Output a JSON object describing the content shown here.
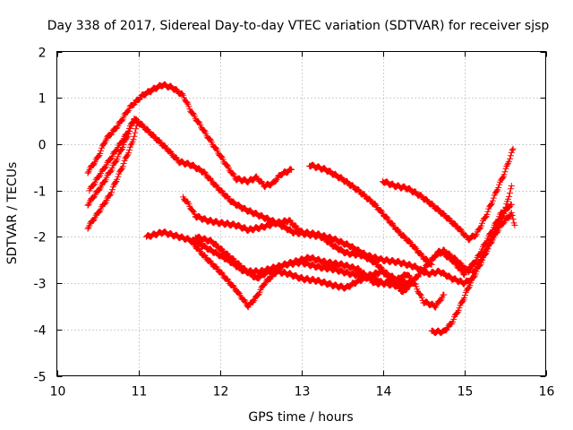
{
  "chart_data": {
    "type": "scatter",
    "title": "Day 338 of 2017, Sidereal Day-to-day VTEC variation (SDTVAR) for receiver sjsp",
    "xlabel": "GPS time / hours",
    "ylabel": "SDTVAR / TECUs",
    "xlim": [
      10,
      16
    ],
    "ylim": [
      -5,
      2
    ],
    "xticks": [
      10,
      11,
      12,
      13,
      14,
      15,
      16
    ],
    "yticks": [
      -5,
      -4,
      -3,
      -2,
      -1,
      0,
      1,
      2
    ],
    "grid": true,
    "marker": "+",
    "color": "#ff0000",
    "series": [
      {
        "name": "track-1",
        "points": [
          [
            10.38,
            -0.6
          ],
          [
            10.5,
            -0.3
          ],
          [
            10.6,
            0.1
          ],
          [
            10.75,
            0.4
          ],
          [
            10.9,
            0.8
          ],
          [
            11.05,
            1.05
          ],
          [
            11.2,
            1.2
          ],
          [
            11.3,
            1.28
          ],
          [
            11.42,
            1.22
          ],
          [
            11.55,
            1.05
          ],
          [
            11.65,
            0.7
          ],
          [
            11.8,
            0.3
          ],
          [
            11.95,
            -0.1
          ],
          [
            12.1,
            -0.5
          ],
          [
            12.2,
            -0.75
          ],
          [
            12.35,
            -0.8
          ],
          [
            12.45,
            -0.72
          ],
          [
            12.55,
            -0.9
          ],
          [
            12.65,
            -0.85
          ],
          [
            12.75,
            -0.65
          ],
          [
            12.88,
            -0.55
          ]
        ]
      },
      {
        "name": "track-2",
        "points": [
          [
            10.38,
            -1.3
          ],
          [
            10.55,
            -0.9
          ],
          [
            10.7,
            -0.45
          ],
          [
            10.85,
            0.1
          ],
          [
            10.95,
            0.55
          ],
          [
            11.05,
            0.4
          ],
          [
            11.2,
            0.15
          ],
          [
            11.35,
            -0.1
          ],
          [
            11.5,
            -0.38
          ],
          [
            11.65,
            -0.45
          ],
          [
            11.8,
            -0.6
          ],
          [
            11.95,
            -0.9
          ],
          [
            12.15,
            -1.25
          ],
          [
            12.3,
            -1.4
          ],
          [
            12.5,
            -1.55
          ],
          [
            12.7,
            -1.7
          ],
          [
            12.9,
            -1.9
          ],
          [
            13.1,
            -1.95
          ],
          [
            13.25,
            -2.0
          ],
          [
            13.4,
            -2.2
          ],
          [
            13.55,
            -2.35
          ],
          [
            13.75,
            -2.4
          ],
          [
            13.9,
            -2.55
          ],
          [
            14.05,
            -2.8
          ],
          [
            14.2,
            -2.95
          ],
          [
            14.35,
            -3.0
          ],
          [
            14.5,
            -2.7
          ],
          [
            14.7,
            -2.3
          ],
          [
            14.85,
            -2.5
          ],
          [
            15.0,
            -2.8
          ],
          [
            15.15,
            -2.5
          ],
          [
            15.3,
            -2.0
          ],
          [
            15.45,
            -1.5
          ],
          [
            15.58,
            -1.3
          ]
        ]
      },
      {
        "name": "track-3",
        "points": [
          [
            10.38,
            -1.8
          ],
          [
            10.5,
            -1.5
          ],
          [
            10.65,
            -1.1
          ],
          [
            10.8,
            -0.5
          ],
          [
            10.92,
            0.0
          ],
          [
            11.0,
            0.5
          ]
        ]
      },
      {
        "name": "track-4",
        "points": [
          [
            10.4,
            -1.0
          ],
          [
            10.55,
            -0.6
          ],
          [
            10.7,
            -0.2
          ],
          [
            10.85,
            0.2
          ],
          [
            10.95,
            0.55
          ]
        ]
      },
      {
        "name": "track-5",
        "points": [
          [
            11.1,
            -2.0
          ],
          [
            11.3,
            -1.9
          ],
          [
            11.5,
            -2.0
          ],
          [
            11.7,
            -2.1
          ],
          [
            11.9,
            -2.3
          ],
          [
            12.1,
            -2.5
          ],
          [
            12.3,
            -2.75
          ],
          [
            12.5,
            -2.75
          ],
          [
            12.7,
            -2.65
          ],
          [
            12.9,
            -2.55
          ],
          [
            13.1,
            -2.45
          ],
          [
            13.3,
            -2.55
          ],
          [
            13.5,
            -2.6
          ],
          [
            13.7,
            -2.7
          ],
          [
            13.9,
            -3.0
          ],
          [
            14.0,
            -3.0
          ],
          [
            14.15,
            -3.05
          ],
          [
            14.3,
            -3.1
          ]
        ]
      },
      {
        "name": "track-6",
        "points": [
          [
            11.55,
            -1.15
          ],
          [
            11.62,
            -1.3
          ],
          [
            11.7,
            -1.55
          ],
          [
            11.85,
            -1.65
          ],
          [
            12.0,
            -1.7
          ],
          [
            12.2,
            -1.75
          ],
          [
            12.35,
            -1.85
          ],
          [
            12.5,
            -1.8
          ],
          [
            12.7,
            -1.7
          ],
          [
            12.85,
            -1.65
          ],
          [
            13.0,
            -1.9
          ],
          [
            13.2,
            -1.95
          ],
          [
            13.4,
            -2.05
          ],
          [
            13.6,
            -2.2
          ],
          [
            13.8,
            -2.4
          ],
          [
            14.0,
            -2.5
          ],
          [
            14.2,
            -2.55
          ],
          [
            14.4,
            -2.65
          ],
          [
            14.55,
            -2.8
          ],
          [
            14.7,
            -2.75
          ],
          [
            14.85,
            -2.9
          ],
          [
            15.0,
            -3.0
          ],
          [
            15.1,
            -2.9
          ]
        ]
      },
      {
        "name": "track-7",
        "points": [
          [
            11.65,
            -2.1
          ],
          [
            11.8,
            -2.4
          ],
          [
            12.0,
            -2.75
          ],
          [
            12.2,
            -3.15
          ],
          [
            12.35,
            -3.5
          ],
          [
            12.45,
            -3.3
          ],
          [
            12.55,
            -3.0
          ],
          [
            12.7,
            -2.75
          ],
          [
            12.85,
            -2.8
          ],
          [
            13.0,
            -2.9
          ],
          [
            13.2,
            -2.95
          ],
          [
            13.4,
            -3.05
          ],
          [
            13.55,
            -3.1
          ],
          [
            13.7,
            -2.95
          ],
          [
            13.85,
            -2.85
          ],
          [
            14.0,
            -3.0
          ],
          [
            14.15,
            -2.95
          ],
          [
            14.3,
            -2.8
          ],
          [
            14.4,
            -3.05
          ],
          [
            14.5,
            -3.4
          ],
          [
            14.65,
            -3.5
          ],
          [
            14.75,
            -3.25
          ]
        ]
      },
      {
        "name": "track-8",
        "points": [
          [
            11.7,
            -2.0
          ],
          [
            11.9,
            -2.1
          ],
          [
            12.1,
            -2.4
          ],
          [
            12.3,
            -2.7
          ],
          [
            12.45,
            -2.9
          ],
          [
            12.6,
            -2.75
          ],
          [
            12.8,
            -2.6
          ],
          [
            13.0,
            -2.55
          ],
          [
            13.2,
            -2.65
          ],
          [
            13.4,
            -2.7
          ],
          [
            13.6,
            -2.8
          ],
          [
            13.8,
            -2.85
          ],
          [
            14.0,
            -2.75
          ],
          [
            14.15,
            -3.0
          ],
          [
            14.25,
            -3.2
          ],
          [
            14.35,
            -3.0
          ],
          [
            14.5,
            -2.7
          ],
          [
            14.65,
            -2.4
          ],
          [
            14.75,
            -2.3
          ],
          [
            14.9,
            -2.5
          ],
          [
            15.05,
            -2.75
          ],
          [
            15.15,
            -2.5
          ]
        ]
      },
      {
        "name": "track-9",
        "points": [
          [
            13.1,
            -0.45
          ],
          [
            13.3,
            -0.55
          ],
          [
            13.5,
            -0.75
          ],
          [
            13.7,
            -1.0
          ],
          [
            13.9,
            -1.3
          ],
          [
            14.05,
            -1.6
          ],
          [
            14.2,
            -1.9
          ],
          [
            14.35,
            -2.15
          ],
          [
            14.5,
            -2.45
          ],
          [
            14.6,
            -2.6
          ]
        ]
      },
      {
        "name": "track-10",
        "points": [
          [
            14.0,
            -0.8
          ],
          [
            14.15,
            -0.9
          ],
          [
            14.3,
            -0.95
          ],
          [
            14.45,
            -1.1
          ],
          [
            14.6,
            -1.3
          ],
          [
            14.8,
            -1.6
          ],
          [
            14.95,
            -1.85
          ],
          [
            15.05,
            -2.05
          ],
          [
            15.15,
            -1.95
          ],
          [
            15.28,
            -1.5
          ],
          [
            15.4,
            -1.0
          ],
          [
            15.5,
            -0.6
          ],
          [
            15.6,
            -0.1
          ]
        ]
      },
      {
        "name": "track-11",
        "points": [
          [
            14.6,
            -4.05
          ],
          [
            14.75,
            -4.05
          ],
          [
            14.85,
            -3.85
          ],
          [
            14.95,
            -3.5
          ],
          [
            15.05,
            -3.1
          ],
          [
            15.15,
            -2.75
          ],
          [
            15.25,
            -2.4
          ],
          [
            15.35,
            -2.05
          ],
          [
            15.45,
            -1.75
          ],
          [
            15.58,
            -1.5
          ],
          [
            15.62,
            -1.75
          ]
        ]
      },
      {
        "name": "track-12",
        "points": [
          [
            15.1,
            -2.8
          ],
          [
            15.2,
            -2.5
          ],
          [
            15.3,
            -2.15
          ],
          [
            15.4,
            -1.8
          ],
          [
            15.5,
            -1.45
          ],
          [
            15.58,
            -0.9
          ]
        ]
      }
    ]
  }
}
